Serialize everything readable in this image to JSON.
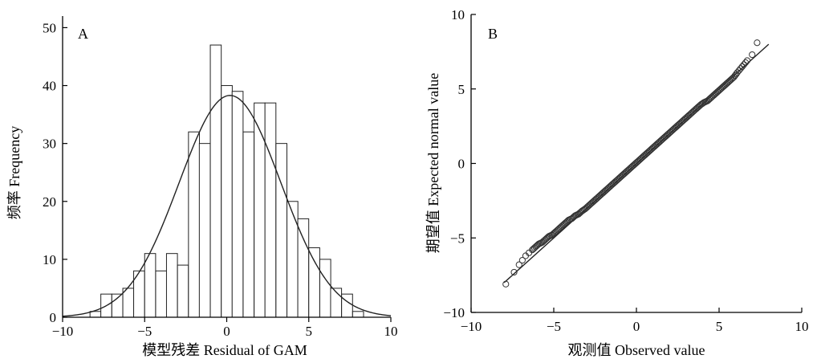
{
  "chart_data": [
    {
      "type": "bar",
      "panel_label": "A",
      "xlabel": "模型残差 Residual of GAM",
      "ylabel": "频率 Frequency",
      "xlim": [
        -10,
        10
      ],
      "ylim": [
        0,
        52
      ],
      "xticks": [
        -10,
        -5,
        0,
        5,
        10
      ],
      "yticks": [
        0,
        10,
        20,
        30,
        40,
        50
      ],
      "bin_width": 0.667,
      "bins": [
        {
          "x0": -8.33,
          "count": 1
        },
        {
          "x0": -7.67,
          "count": 4
        },
        {
          "x0": -7.0,
          "count": 4
        },
        {
          "x0": -6.33,
          "count": 5
        },
        {
          "x0": -5.67,
          "count": 8
        },
        {
          "x0": -5.0,
          "count": 11
        },
        {
          "x0": -4.33,
          "count": 8
        },
        {
          "x0": -3.67,
          "count": 11
        },
        {
          "x0": -3.0,
          "count": 9
        },
        {
          "x0": -2.33,
          "count": 32
        },
        {
          "x0": -1.67,
          "count": 30
        },
        {
          "x0": -1.0,
          "count": 47
        },
        {
          "x0": -0.33,
          "count": 40
        },
        {
          "x0": 0.33,
          "count": 39
        },
        {
          "x0": 1.0,
          "count": 32
        },
        {
          "x0": 1.67,
          "count": 37
        },
        {
          "x0": 2.33,
          "count": 37
        },
        {
          "x0": 3.0,
          "count": 30
        },
        {
          "x0": 3.67,
          "count": 20
        },
        {
          "x0": 4.33,
          "count": 17
        },
        {
          "x0": 5.0,
          "count": 12
        },
        {
          "x0": 5.67,
          "count": 10
        },
        {
          "x0": 6.33,
          "count": 5
        },
        {
          "x0": 7.0,
          "count": 4
        },
        {
          "x0": 7.67,
          "count": 1
        },
        {
          "x0": 8.33,
          "count": 0
        }
      ],
      "normal_curve": {
        "mean": 0.2,
        "sd": 3.1,
        "peak": 38.3
      }
    },
    {
      "type": "scatter",
      "panel_label": "B",
      "xlabel": "观测值 Observed value",
      "ylabel": "期望值 Expected normal value",
      "xlim": [
        -10,
        10
      ],
      "ylim": [
        -10,
        10
      ],
      "xticks": [
        -10,
        -5,
        0,
        5,
        10
      ],
      "yticks": [
        -10,
        -5,
        0,
        5,
        10
      ],
      "reference_line": {
        "x": [
          -8,
          8
        ],
        "y": [
          -8,
          8
        ]
      },
      "points": {
        "x": [
          -7.9,
          -7.4,
          -7.1,
          -6.9,
          -6.7,
          -6.5,
          -6.3,
          -6.1,
          -5.9,
          -5.7,
          -5.5,
          -5.3,
          -5.1,
          -4.9,
          -4.7,
          -4.5,
          -4.3,
          -4.1,
          -3.9,
          -3.7,
          -3.5,
          -3.3,
          -3.1,
          -2.9,
          -2.7,
          -2.5,
          -2.3,
          -2.1,
          -1.9,
          -1.7,
          -1.5,
          -1.3,
          -1.1,
          -0.9,
          -0.7,
          -0.5,
          -0.3,
          -0.1,
          0.1,
          0.3,
          0.5,
          0.7,
          0.9,
          1.1,
          1.3,
          1.5,
          1.7,
          1.9,
          2.1,
          2.3,
          2.5,
          2.7,
          2.9,
          3.1,
          3.3,
          3.5,
          3.7,
          3.9,
          4.1,
          4.3,
          4.5,
          4.7,
          4.9,
          5.1,
          5.3,
          5.5,
          5.7,
          5.9,
          6.1,
          6.4,
          6.7,
          7.0,
          7.3
        ],
        "y": [
          -8.1,
          -7.3,
          -6.8,
          -6.5,
          -6.2,
          -6.0,
          -5.8,
          -5.6,
          -5.4,
          -5.3,
          -5.1,
          -4.9,
          -4.8,
          -4.6,
          -4.4,
          -4.2,
          -4.0,
          -3.8,
          -3.7,
          -3.5,
          -3.4,
          -3.2,
          -3.05,
          -2.85,
          -2.65,
          -2.45,
          -2.25,
          -2.05,
          -1.85,
          -1.65,
          -1.45,
          -1.25,
          -1.05,
          -0.85,
          -0.65,
          -0.45,
          -0.25,
          -0.05,
          0.15,
          0.35,
          0.55,
          0.75,
          0.95,
          1.15,
          1.35,
          1.55,
          1.75,
          1.95,
          2.15,
          2.35,
          2.55,
          2.75,
          2.95,
          3.15,
          3.35,
          3.55,
          3.75,
          3.95,
          4.1,
          4.2,
          4.4,
          4.6,
          4.8,
          5.0,
          5.2,
          5.4,
          5.6,
          5.8,
          6.1,
          6.5,
          6.9,
          7.3,
          8.1
        ]
      }
    }
  ]
}
